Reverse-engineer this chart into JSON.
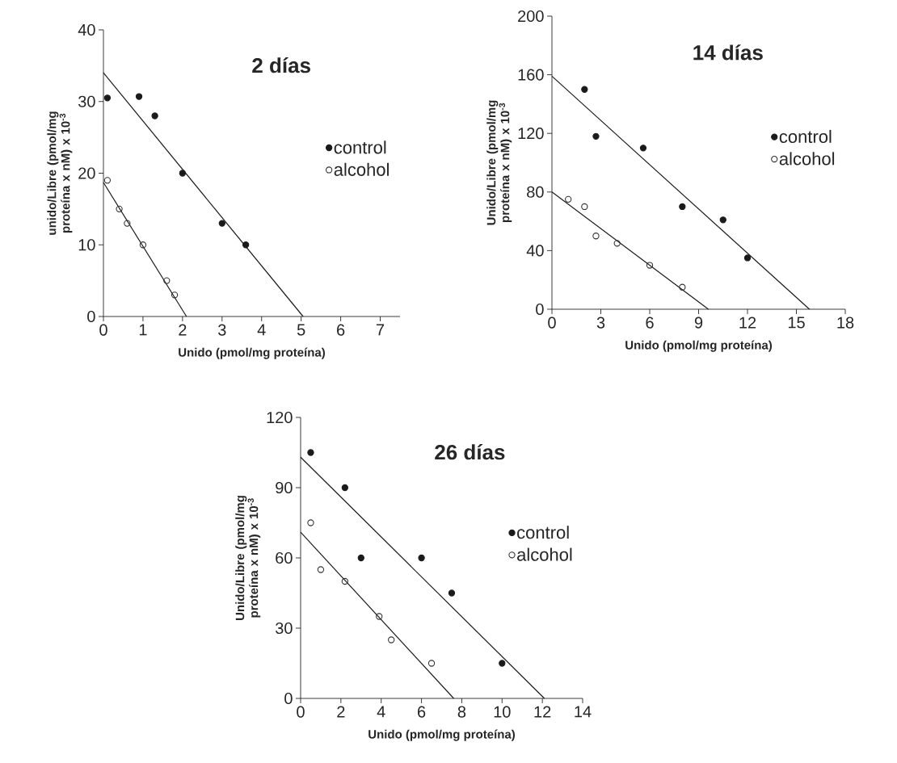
{
  "chart_data": [
    {
      "type": "scatter",
      "title": "2 días",
      "xlabel": "Unido (pmol/mg proteína)",
      "ylabel": "unido/Libre (pmol/mg proteína x nM) x 10$^{-3}$",
      "xlim": [
        0,
        7.5
      ],
      "xticks": [
        0,
        1,
        2,
        3,
        4,
        5,
        6,
        7
      ],
      "ylim": [
        0,
        40
      ],
      "yticks": [
        0,
        10,
        20,
        30,
        40
      ],
      "legend": "right",
      "marker": "circle",
      "grid": false,
      "series": [
        {
          "name": "control",
          "color": "#1a1a1a",
          "x": [
            0.1,
            0.9,
            1.3,
            2,
            3,
            3.6
          ],
          "values": [
            30.5,
            30.7,
            28,
            20,
            13,
            10
          ]
        },
        {
          "name": "alcohol",
          "color": "#333333",
          "x": [
            0.1,
            0.4,
            0.6,
            1,
            1.6,
            1.8
          ],
          "values": [
            19,
            15,
            13,
            10,
            5,
            3
          ]
        },
        {
          "type": "line",
          "marker": "none",
          "color": "#1a1a1a",
          "x": [
            0,
            5.05
          ],
          "values": [
            34,
            0
          ]
        },
        {
          "type": "line",
          "marker": "none",
          "color": "#1a1a1a",
          "x": [
            0,
            2.1
          ],
          "values": [
            18.7,
            0
          ]
        }
      ]
    },
    {
      "type": "scatter",
      "title": "14 días",
      "xlabel": "Unido (pmol/mg proteína)",
      "ylabel": "Unido/Libre (pmol/mg proteína x nM) x 10$^{-3}$",
      "xlim": [
        0,
        18
      ],
      "xticks": [
        0,
        3,
        6,
        9,
        12,
        15,
        18
      ],
      "ylim": [
        0,
        200
      ],
      "yticks": [
        0,
        40,
        80,
        120,
        160,
        200
      ],
      "legend": "right",
      "marker": "circle",
      "grid": false,
      "series": [
        {
          "name": "control",
          "color": "#1a1a1a",
          "x": [
            2,
            2.7,
            5.6,
            8,
            10.5,
            12
          ],
          "values": [
            150,
            118,
            110,
            70,
            61,
            35
          ]
        },
        {
          "name": "alcohol",
          "color": "#333333",
          "x": [
            1,
            2,
            2.7,
            4,
            6,
            8
          ],
          "values": [
            75,
            70,
            50,
            45,
            30,
            15
          ]
        },
        {
          "type": "line",
          "marker": "none",
          "color": "#1a1a1a",
          "x": [
            0,
            15.8
          ],
          "values": [
            159,
            0
          ]
        },
        {
          "type": "line",
          "marker": "none",
          "color": "#1a1a1a",
          "x": [
            0,
            9.6
          ],
          "values": [
            80,
            0
          ]
        }
      ]
    },
    {
      "type": "scatter",
      "title": "26 días",
      "xlabel": "Unido (pmol/mg proteína)",
      "ylabel": "Unido/Libre (pmol/mg proteína x nM) x 10$^{-3}$",
      "xlim": [
        0,
        14
      ],
      "xticks": [
        0,
        2,
        4,
        6,
        8,
        10,
        12,
        14
      ],
      "ylim": [
        0,
        120
      ],
      "yticks": [
        0,
        30,
        60,
        90,
        120
      ],
      "legend": "right",
      "marker": "circle",
      "grid": false,
      "series": [
        {
          "name": "control",
          "color": "#1a1a1a",
          "x": [
            0.5,
            2.2,
            3,
            6,
            7.5,
            10
          ],
          "values": [
            105,
            90,
            60,
            60,
            45,
            15
          ]
        },
        {
          "name": "alcohol",
          "color": "#333333",
          "x": [
            0.5,
            1,
            2.2,
            3.9,
            4.5,
            6.5
          ],
          "values": [
            75,
            55,
            50,
            35,
            25,
            15
          ]
        },
        {
          "type": "line",
          "marker": "none",
          "color": "#1a1a1a",
          "x": [
            0,
            12.1
          ],
          "values": [
            103,
            0
          ]
        },
        {
          "type": "line",
          "marker": "none",
          "color": "#1a1a1a",
          "x": [
            0,
            7.6
          ],
          "values": [
            71,
            0
          ]
        }
      ]
    }
  ]
}
